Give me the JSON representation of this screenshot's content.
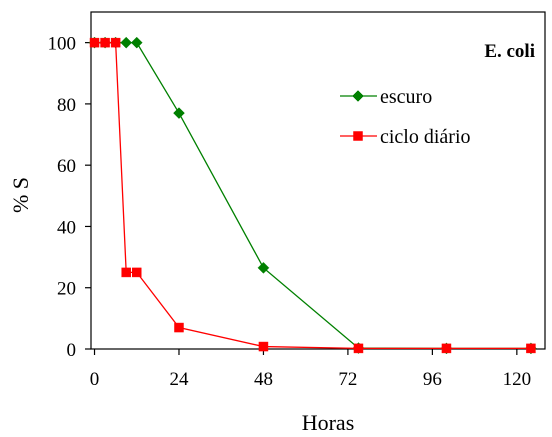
{
  "chart_data": {
    "type": "line",
    "title": "E. coli",
    "xlabel": "Horas",
    "ylabel": "% S",
    "xlim": [
      -1,
      128
    ],
    "ylim": [
      0,
      110
    ],
    "xticks": [
      0,
      24,
      48,
      72,
      96,
      120
    ],
    "yticks": [
      0,
      20,
      40,
      60,
      80,
      100
    ],
    "grid": false,
    "legend_position": "right, below title",
    "series": [
      {
        "name": "escuro",
        "color": "#008000",
        "marker": "diamond",
        "x": [
          0,
          3,
          6,
          9,
          12,
          24,
          48,
          75,
          100,
          124
        ],
        "y": [
          100,
          100,
          100,
          100,
          100,
          77,
          26.5,
          0.3,
          0.2,
          0.2
        ]
      },
      {
        "name": "ciclo diário",
        "color": "#ff0000",
        "marker": "square",
        "x": [
          0,
          3,
          6,
          9,
          12,
          24,
          48,
          75,
          100,
          124
        ],
        "y": [
          100,
          100,
          100,
          25,
          25,
          7,
          0.8,
          0.2,
          0.2,
          0.2
        ]
      }
    ]
  }
}
